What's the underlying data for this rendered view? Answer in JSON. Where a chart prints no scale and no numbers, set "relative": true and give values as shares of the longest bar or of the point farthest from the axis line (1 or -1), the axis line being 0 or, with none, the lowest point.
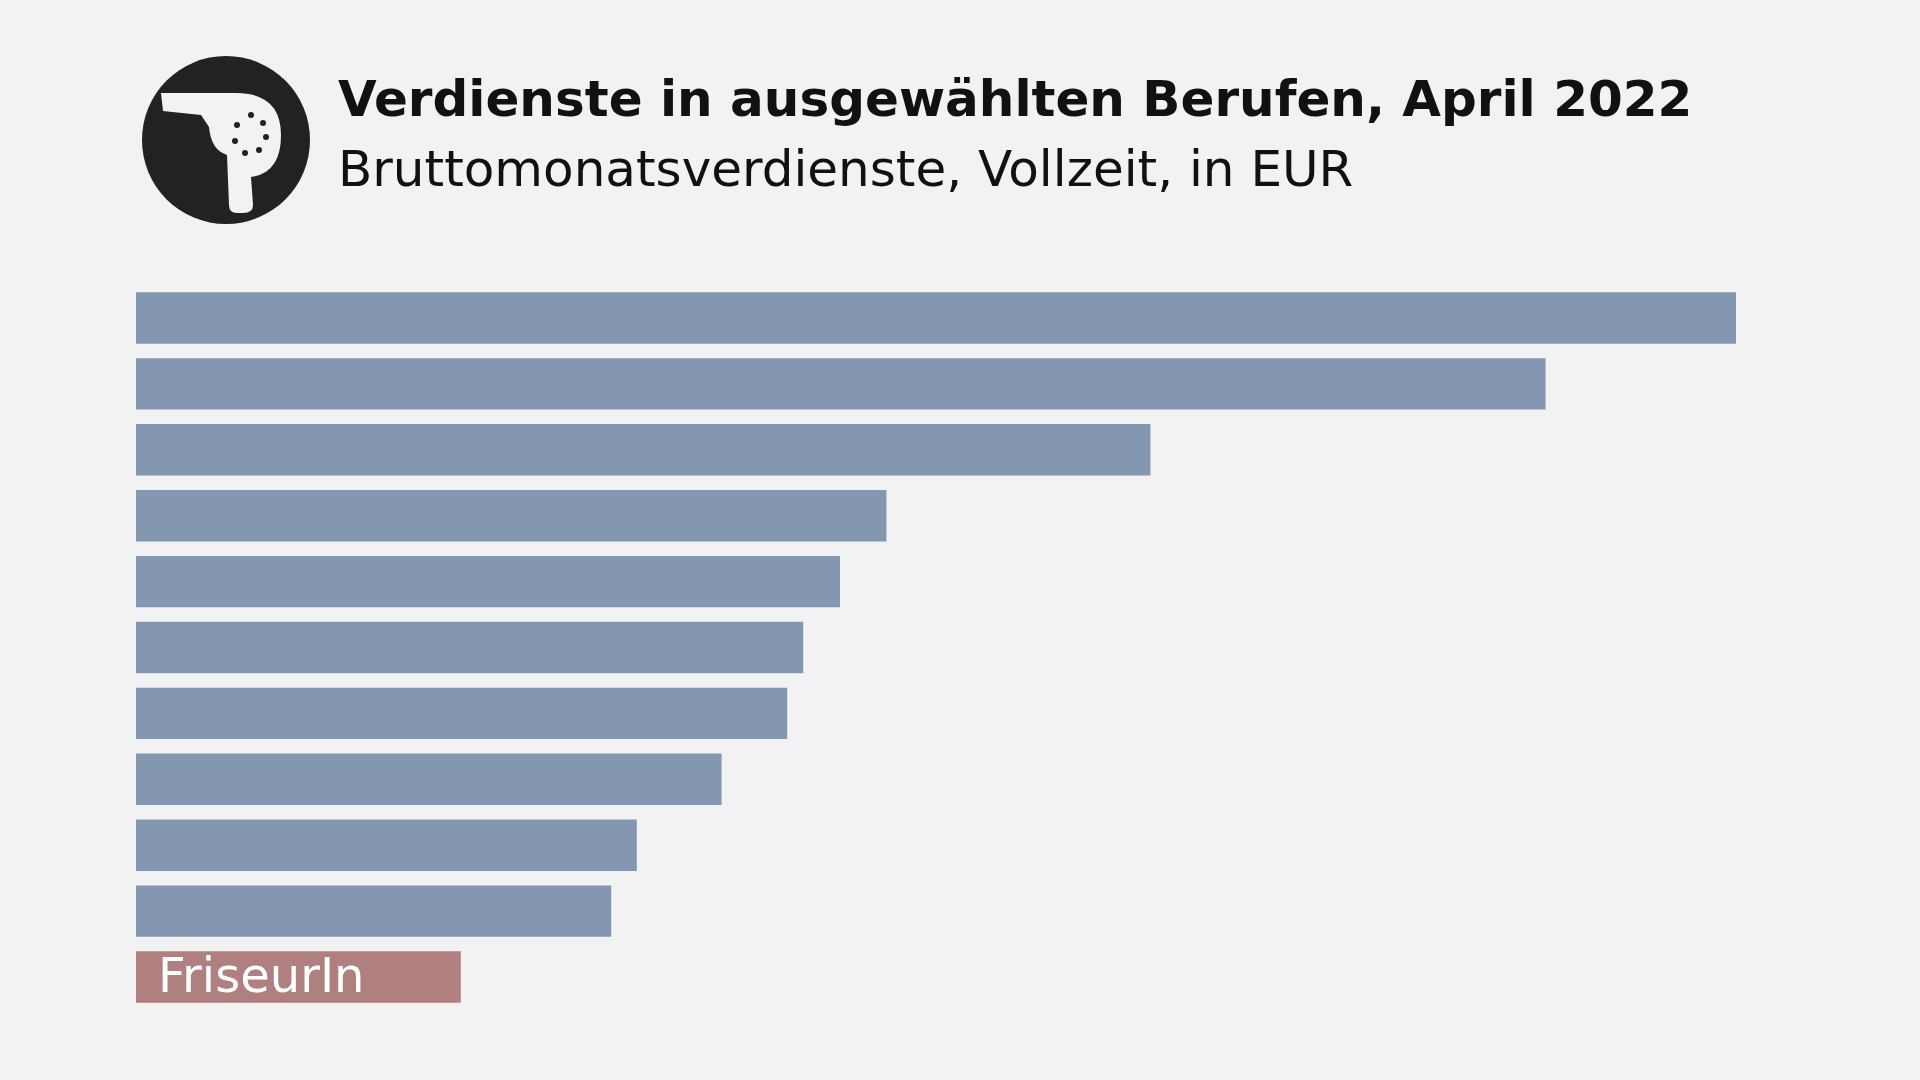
{
  "chart_data": {
    "type": "bar",
    "orientation": "horizontal",
    "relative": true,
    "title": "Verdienste in ausgewählten Berufen, April 2022",
    "subtitle": "Bruttomonatsverdienste, Vollzeit, in EUR",
    "categories": [
      null,
      null,
      null,
      null,
      null,
      null,
      null,
      null,
      null,
      null,
      "FriseurIn"
    ],
    "values": [
      1,
      0.881,
      0.634,
      0.469,
      0.44,
      0.417,
      0.407,
      0.366,
      0.313,
      0.297,
      0.203
    ],
    "colors": [
      "#8497b0",
      "#8497b0",
      "#8497b0",
      "#8497b0",
      "#8497b0",
      "#8497b0",
      "#8497b0",
      "#8497b0",
      "#8497b0",
      "#8497b0",
      "#b07f7f"
    ]
  }
}
